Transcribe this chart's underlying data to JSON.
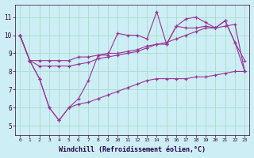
{
  "xlabel": "Windchill (Refroidissement éolien,°C)",
  "xlim": [
    -0.5,
    23.5
  ],
  "ylim": [
    4.5,
    11.7
  ],
  "yticks": [
    5,
    6,
    7,
    8,
    9,
    10,
    11
  ],
  "xticks": [
    0,
    1,
    2,
    3,
    4,
    5,
    6,
    7,
    8,
    9,
    10,
    11,
    12,
    13,
    14,
    15,
    16,
    17,
    18,
    19,
    20,
    21,
    22,
    23
  ],
  "bg_color": "#cdeef5",
  "line_color": "#993399",
  "grid_color": "#aaddcc",
  "series": [
    [
      10.0,
      8.6,
      8.6,
      8.6,
      8.6,
      8.6,
      8.8,
      8.8,
      8.9,
      9.0,
      9.0,
      9.1,
      9.2,
      9.4,
      9.5,
      9.5,
      10.5,
      10.4,
      10.4,
      10.5,
      10.4,
      10.8,
      9.6,
      8.6
    ],
    [
      10.0,
      8.6,
      7.6,
      6.0,
      5.3,
      6.0,
      6.5,
      7.5,
      8.9,
      8.9,
      10.1,
      10.0,
      10.0,
      9.8,
      11.3,
      9.5,
      10.5,
      10.9,
      11.0,
      10.7,
      10.4,
      10.8,
      9.6,
      8.0
    ],
    [
      10.0,
      8.6,
      8.3,
      8.3,
      8.3,
      8.3,
      8.4,
      8.5,
      8.7,
      8.8,
      8.9,
      9.0,
      9.1,
      9.3,
      9.5,
      9.6,
      9.8,
      10.0,
      10.2,
      10.4,
      10.4,
      10.5,
      10.6,
      8.0
    ],
    [
      10.0,
      8.6,
      7.6,
      6.0,
      5.3,
      6.0,
      6.2,
      6.3,
      6.5,
      6.7,
      6.9,
      7.1,
      7.3,
      7.5,
      7.6,
      7.6,
      7.6,
      7.6,
      7.7,
      7.7,
      7.8,
      7.9,
      8.0,
      8.0
    ]
  ]
}
